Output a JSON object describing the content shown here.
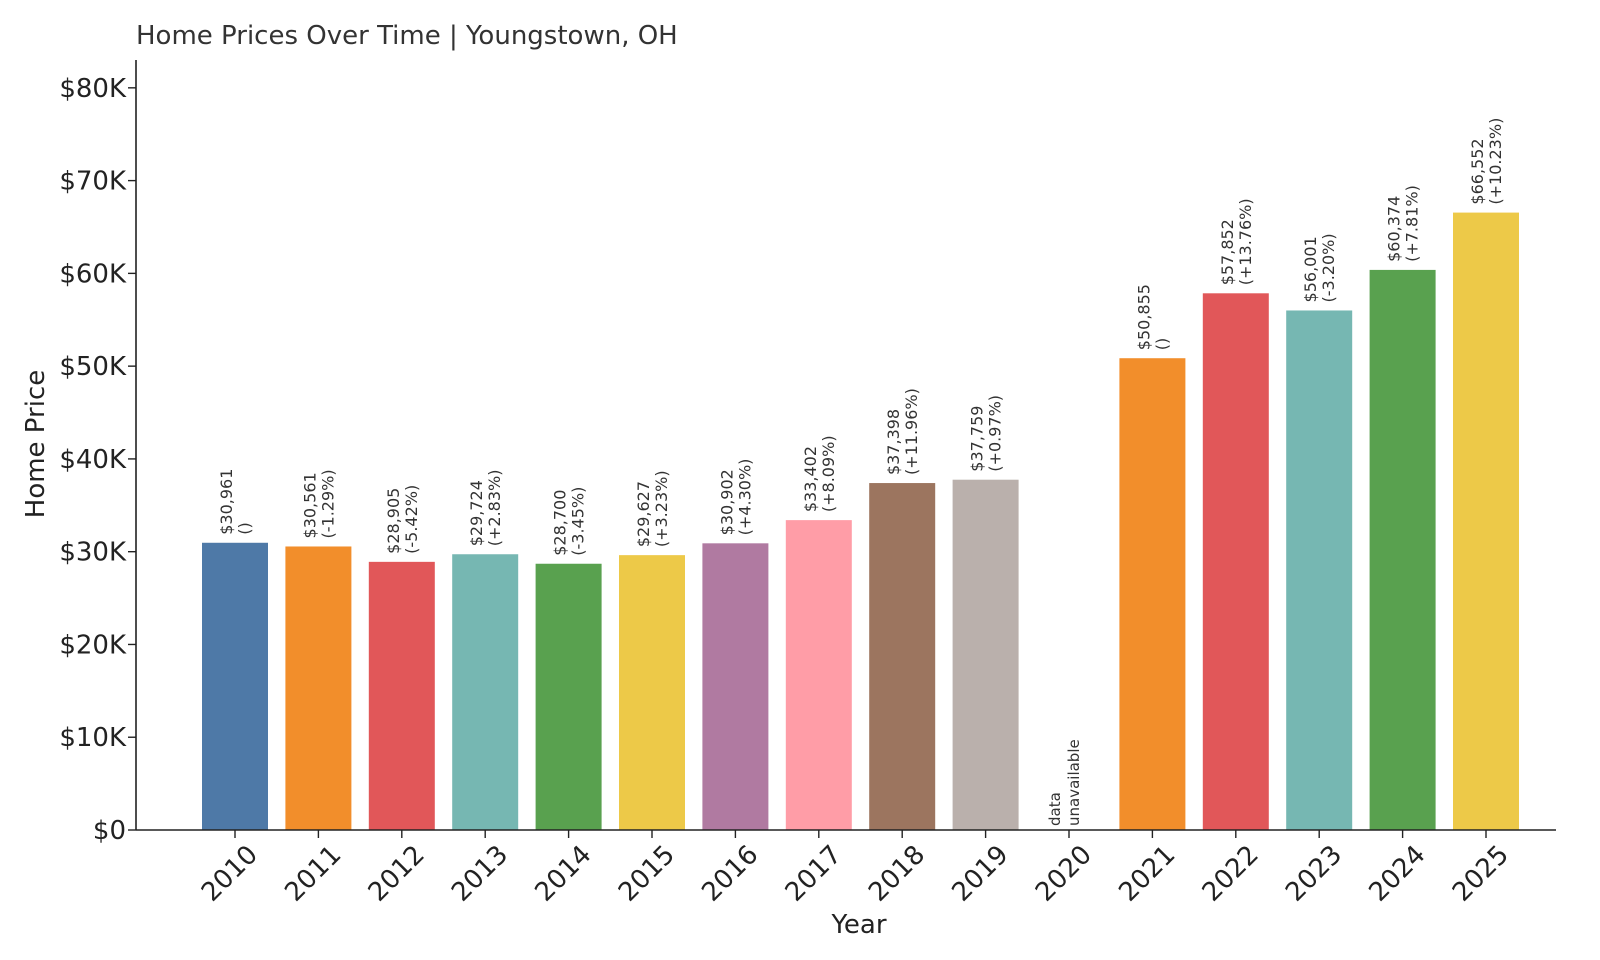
{
  "chart_data": {
    "type": "bar",
    "title": "Home Prices Over Time | Youngstown, OH",
    "xlabel": "Year",
    "ylabel": "Home Price",
    "ylim": [
      0,
      83000
    ],
    "yticks": [
      0,
      10000,
      20000,
      30000,
      40000,
      50000,
      60000,
      70000,
      80000
    ],
    "ytick_labels": [
      "$0",
      "$10K",
      "$20K",
      "$30K",
      "$40K",
      "$50K",
      "$60K",
      "$70K",
      "$80K"
    ],
    "categories": [
      "2010",
      "2011",
      "2012",
      "2013",
      "2014",
      "2015",
      "2016",
      "2017",
      "2018",
      "2019",
      "2020",
      "2021",
      "2022",
      "2023",
      "2024",
      "2025"
    ],
    "values": [
      30961,
      30561,
      28905,
      29724,
      28700,
      29627,
      30902,
      33402,
      37398,
      37759,
      null,
      50855,
      57852,
      56001,
      60374,
      66552
    ],
    "value_labels": [
      "$30,961",
      "$30,561",
      "$28,905",
      "$29,724",
      "$28,700",
      "$29,627",
      "$30,902",
      "$33,402",
      "$37,398",
      "$37,759",
      "",
      "$50,855",
      "$57,852",
      "$56,001",
      "$60,374",
      "$66,552"
    ],
    "change_labels": [
      "()",
      "(-1.29%)",
      "(-5.42%)",
      "(+2.83%)",
      "(-3.45%)",
      "(+3.23%)",
      "(+4.30%)",
      "(+8.09%)",
      "(+11.96%)",
      "(+0.97%)",
      "",
      "()",
      "(+13.76%)",
      "(-3.20%)",
      "(+7.81%)",
      "(+10.23%)"
    ],
    "missing_label": [
      "data",
      "unavailable"
    ],
    "colors": [
      "#4e79a7",
      "#f28e2b",
      "#e15759",
      "#76b7b2",
      "#59a14f",
      "#edc948",
      "#b07aa1",
      "#ff9da7",
      "#9c755f",
      "#bab0ac",
      "#4e79a7",
      "#f28e2b",
      "#e15759",
      "#76b7b2",
      "#59a14f",
      "#edc948"
    ],
    "grid": false,
    "legend": "none"
  }
}
